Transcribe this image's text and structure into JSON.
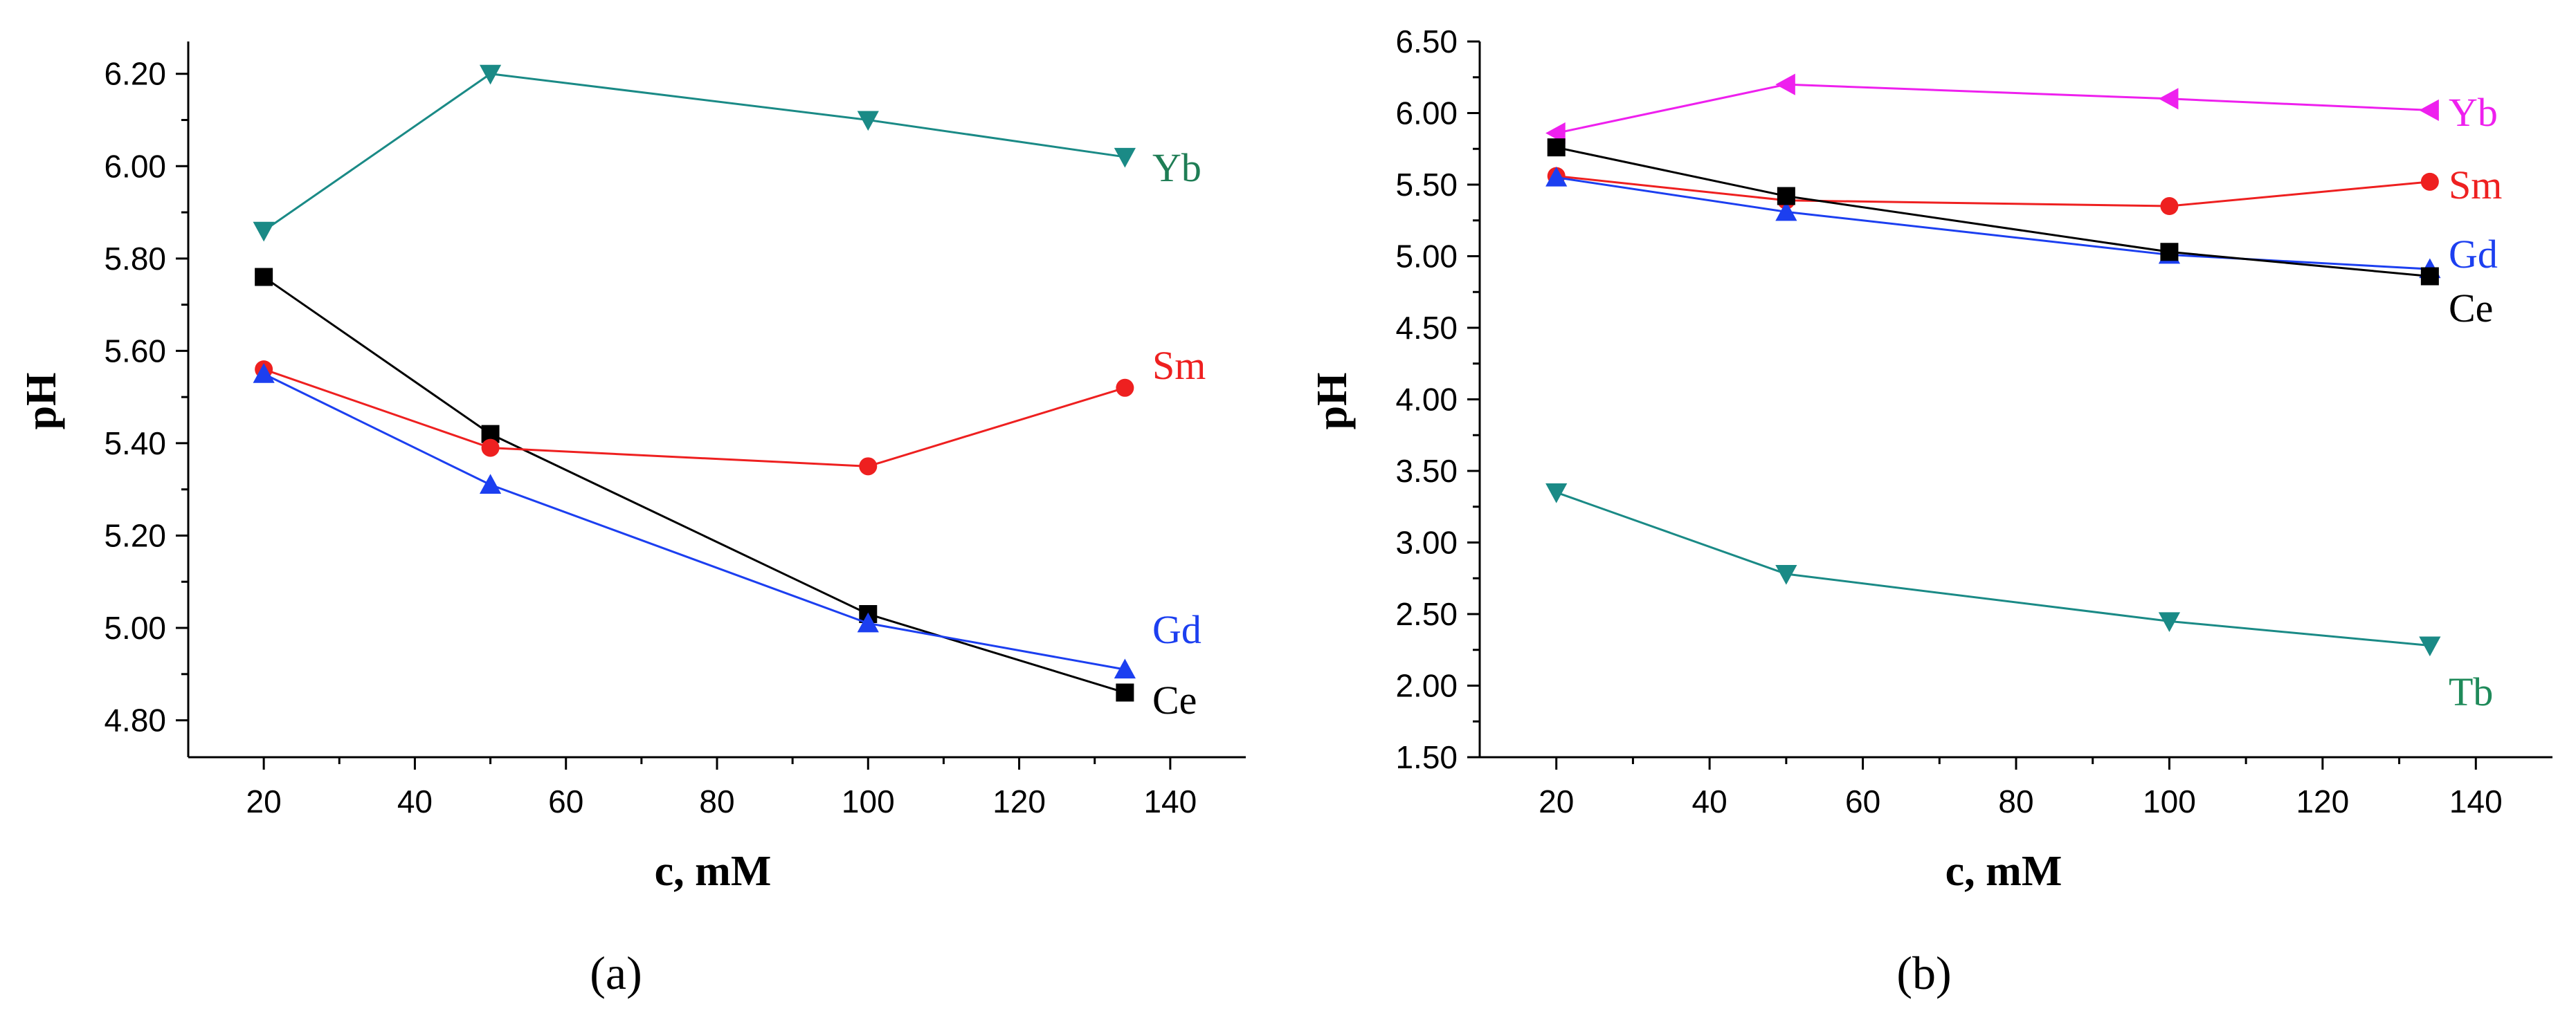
{
  "chart_data": [
    {
      "type": "line",
      "panel_label": "(a)",
      "xlabel": "c, mM",
      "ylabel": "pH",
      "xlim": [
        10,
        150
      ],
      "ylim": [
        4.72,
        6.27
      ],
      "xticks": [
        20,
        40,
        60,
        80,
        100,
        120,
        140
      ],
      "xtick_labels": [
        "20",
        "40",
        "60",
        "80",
        "100",
        "120",
        "140"
      ],
      "yticks": [
        4.8,
        5.0,
        5.2,
        5.4,
        5.6,
        5.8,
        6.0,
        6.2
      ],
      "ytick_labels": [
        "4.80",
        "5.00",
        "5.20",
        "5.40",
        "5.60",
        "5.80",
        "6.00",
        "6.20"
      ],
      "grid": false,
      "series": [
        {
          "name": "Yb",
          "color": "#1a8a86",
          "label_color": "#1f7d55",
          "marker": "triangle-down",
          "x": [
            20,
            50,
            100,
            134
          ],
          "y": [
            5.86,
            6.2,
            6.1,
            6.02
          ]
        },
        {
          "name": "Ce",
          "color": "#000000",
          "label_color": "#000000",
          "marker": "square",
          "x": [
            20,
            50,
            100,
            134
          ],
          "y": [
            5.76,
            5.42,
            5.03,
            4.86
          ]
        },
        {
          "name": "Sm",
          "color": "#ee2020",
          "label_color": "#ee2020",
          "marker": "circle",
          "x": [
            20,
            50,
            100,
            134
          ],
          "y": [
            5.56,
            5.39,
            5.35,
            5.52
          ]
        },
        {
          "name": "Gd",
          "color": "#1c3ff0",
          "label_color": "#1c3ff0",
          "marker": "triangle-up",
          "x": [
            20,
            50,
            100,
            134
          ],
          "y": [
            5.55,
            5.31,
            5.01,
            4.91
          ]
        }
      ]
    },
    {
      "type": "line",
      "panel_label": "(b)",
      "xlabel": "c, mM",
      "ylabel": "pH",
      "xlim": [
        10,
        150
      ],
      "ylim": [
        1.5,
        6.5
      ],
      "xticks": [
        20,
        40,
        60,
        80,
        100,
        120,
        140
      ],
      "xtick_labels": [
        "20",
        "40",
        "60",
        "80",
        "100",
        "120",
        "140"
      ],
      "yticks": [
        1.5,
        2.0,
        2.5,
        3.0,
        3.5,
        4.0,
        4.5,
        5.0,
        5.5,
        6.0,
        6.5
      ],
      "ytick_labels": [
        "1.50",
        "2.00",
        "2.50",
        "3.00",
        "3.50",
        "4.00",
        "4.50",
        "5.00",
        "5.50",
        "6.00",
        "6.50"
      ],
      "grid": false,
      "series": [
        {
          "name": "Yb",
          "color": "#ee20ee",
          "label_color": "#ee20ee",
          "marker": "triangle-left",
          "x": [
            20,
            50,
            100,
            134
          ],
          "y": [
            5.86,
            6.2,
            6.1,
            6.02
          ]
        },
        {
          "name": "Sm",
          "color": "#ee2020",
          "label_color": "#ee2020",
          "marker": "circle",
          "x": [
            20,
            50,
            100,
            134
          ],
          "y": [
            5.56,
            5.39,
            5.35,
            5.52
          ]
        },
        {
          "name": "Gd",
          "color": "#1c3ff0",
          "label_color": "#1c3ff0",
          "marker": "triangle-up",
          "x": [
            20,
            50,
            100,
            134
          ],
          "y": [
            5.55,
            5.31,
            5.01,
            4.91
          ]
        },
        {
          "name": "Ce",
          "color": "#000000",
          "label_color": "#000000",
          "marker": "square",
          "x": [
            20,
            50,
            100,
            134
          ],
          "y": [
            5.76,
            5.42,
            5.03,
            4.86
          ]
        },
        {
          "name": "Tb",
          "color": "#1a8a86",
          "label_color": "#1f8a5a",
          "marker": "triangle-down",
          "x": [
            20,
            50,
            100,
            134
          ],
          "y": [
            3.35,
            2.78,
            2.45,
            2.28
          ]
        }
      ]
    }
  ]
}
